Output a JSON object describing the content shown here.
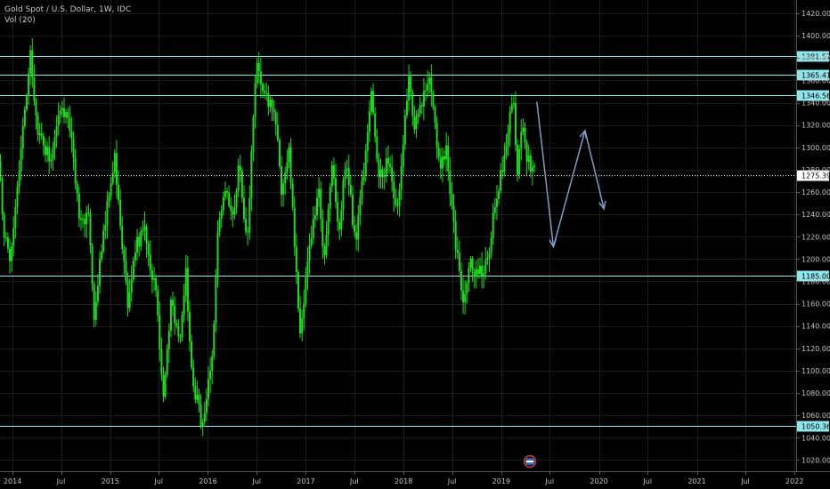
{
  "header": {
    "symbol_line": "Gold Spot / U.S. Dollar, 1W, IDC",
    "indicator": "Vol (20)"
  },
  "colors": {
    "background": "#000000",
    "candle": "#1fdc1f",
    "level_line": "#8fe6ec",
    "projection_arrow": "#7d9ec2",
    "current_price_line": "#ffffff"
  },
  "chart_data": {
    "type": "candlestick",
    "title": "Gold Spot / U.S. Dollar, 1W, IDC",
    "x_range": [
      "2013-11-15",
      "2022-01-07"
    ],
    "y_range": [
      1010,
      1432
    ],
    "y_ticks": [
      1020,
      1040,
      1060,
      1080,
      1100,
      1120,
      1140,
      1160,
      1180,
      1200,
      1220,
      1240,
      1260,
      1280,
      1300,
      1320,
      1340,
      1360,
      1380,
      1400,
      1420
    ],
    "x_ticks": [
      {
        "label": "2014",
        "date": "2014-01-01"
      },
      {
        "label": "Jul",
        "date": "2014-07-01"
      },
      {
        "label": "2015",
        "date": "2015-01-01"
      },
      {
        "label": "Jul",
        "date": "2015-07-01"
      },
      {
        "label": "2016",
        "date": "2016-01-01"
      },
      {
        "label": "Jul",
        "date": "2016-07-01"
      },
      {
        "label": "2017",
        "date": "2017-01-01"
      },
      {
        "label": "Jul",
        "date": "2017-07-01"
      },
      {
        "label": "2018",
        "date": "2018-01-01"
      },
      {
        "label": "Jul",
        "date": "2018-07-01"
      },
      {
        "label": "2019",
        "date": "2019-01-01"
      },
      {
        "label": "Jul",
        "date": "2019-07-01"
      },
      {
        "label": "2020",
        "date": "2020-01-01"
      },
      {
        "label": "Jul",
        "date": "2020-07-01"
      },
      {
        "label": "2021",
        "date": "2021-01-01"
      },
      {
        "label": "Jul",
        "date": "2021-07-01"
      },
      {
        "label": "2022",
        "date": "2022-01-01"
      }
    ],
    "horizontal_levels": [
      {
        "value": 1381.57,
        "label": "1381.57"
      },
      {
        "value": 1365.41,
        "label": "1365.41"
      },
      {
        "value": 1346.56,
        "label": "1346.56"
      },
      {
        "value": 1185.0,
        "label": "1185.00"
      },
      {
        "value": 1050.36,
        "label": "1050.36"
      }
    ],
    "current_price": {
      "value": 1275.39,
      "label": "1275.39"
    },
    "price_path": [
      [
        "2013-11-15",
        1288
      ],
      [
        "2013-12-05",
        1225
      ],
      [
        "2013-12-31",
        1200
      ],
      [
        "2014-01-25",
        1265
      ],
      [
        "2014-03-14",
        1385
      ],
      [
        "2014-04-10",
        1310
      ],
      [
        "2014-05-25",
        1290
      ],
      [
        "2014-06-20",
        1320
      ],
      [
        "2014-07-10",
        1340
      ],
      [
        "2014-08-15",
        1310
      ],
      [
        "2014-09-15",
        1230
      ],
      [
        "2014-10-20",
        1240
      ],
      [
        "2014-11-05",
        1140
      ],
      [
        "2014-12-01",
        1200
      ],
      [
        "2015-01-22",
        1295
      ],
      [
        "2015-03-15",
        1150
      ],
      [
        "2015-04-05",
        1210
      ],
      [
        "2015-05-15",
        1225
      ],
      [
        "2015-06-25",
        1170
      ],
      [
        "2015-07-24",
        1080
      ],
      [
        "2015-08-20",
        1160
      ],
      [
        "2015-09-25",
        1130
      ],
      [
        "2015-10-15",
        1190
      ],
      [
        "2015-11-10",
        1090
      ],
      [
        "2015-12-17",
        1050
      ],
      [
        "2016-01-25",
        1120
      ],
      [
        "2016-02-15",
        1240
      ],
      [
        "2016-03-15",
        1260
      ],
      [
        "2016-04-15",
        1240
      ],
      [
        "2016-05-01",
        1295
      ],
      [
        "2016-05-30",
        1210
      ],
      [
        "2016-07-06",
        1375
      ],
      [
        "2016-08-15",
        1340
      ],
      [
        "2016-09-15",
        1330
      ],
      [
        "2016-10-07",
        1255
      ],
      [
        "2016-11-05",
        1300
      ],
      [
        "2016-12-15",
        1125
      ],
      [
        "2017-01-15",
        1210
      ],
      [
        "2017-02-25",
        1260
      ],
      [
        "2017-03-15",
        1200
      ],
      [
        "2017-04-15",
        1290
      ],
      [
        "2017-05-10",
        1220
      ],
      [
        "2017-06-06",
        1295
      ],
      [
        "2017-07-10",
        1210
      ],
      [
        "2017-08-15",
        1290
      ],
      [
        "2017-09-08",
        1355
      ],
      [
        "2017-10-05",
        1270
      ],
      [
        "2017-11-15",
        1290
      ],
      [
        "2017-12-12",
        1240
      ],
      [
        "2018-01-25",
        1365
      ],
      [
        "2018-02-15",
        1320
      ],
      [
        "2018-04-11",
        1365
      ],
      [
        "2018-05-20",
        1285
      ],
      [
        "2018-06-15",
        1300
      ],
      [
        "2018-07-15",
        1225
      ],
      [
        "2018-08-16",
        1160
      ],
      [
        "2018-09-10",
        1200
      ],
      [
        "2018-10-10",
        1185
      ],
      [
        "2018-11-13",
        1195
      ],
      [
        "2018-12-15",
        1250
      ],
      [
        "2019-01-15",
        1290
      ],
      [
        "2019-02-20",
        1345
      ],
      [
        "2019-03-07",
        1280
      ],
      [
        "2019-03-28",
        1325
      ],
      [
        "2019-04-12",
        1290
      ],
      [
        "2019-05-03",
        1280
      ]
    ],
    "projection": [
      {
        "from": [
          "2019-05-14",
          1341
        ],
        "to": [
          "2019-07-15",
          1211
        ]
      },
      {
        "from": [
          "2019-07-15",
          1211
        ],
        "to": [
          "2019-11-10",
          1315
        ]
      },
      {
        "from": [
          "2019-11-10",
          1315
        ],
        "to": [
          "2020-01-20",
          1245
        ]
      }
    ],
    "grid": true,
    "price_axis": "right",
    "time_axis": "bottom"
  }
}
